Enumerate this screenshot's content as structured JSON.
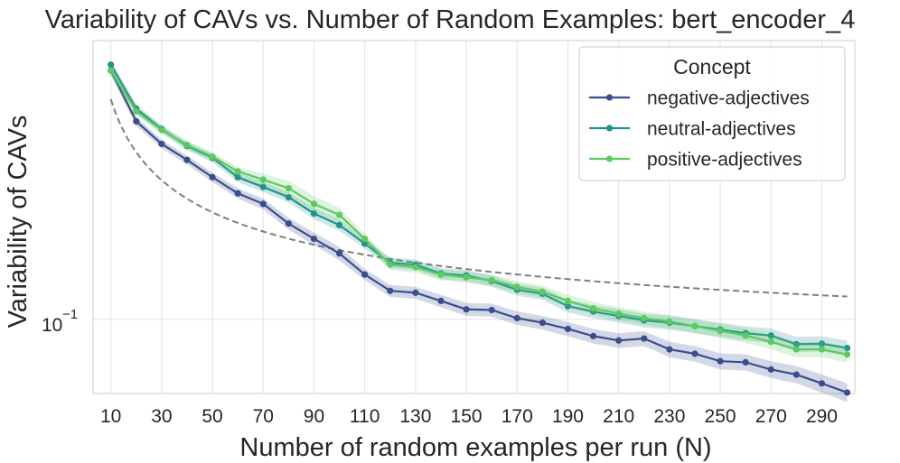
{
  "chart_data": {
    "type": "line",
    "title": "Variability of CAVs vs. Number of Random Examples: bert_encoder_4",
    "xlabel": "Number of random examples per run (N)",
    "ylabel": "Variability of CAVs",
    "yscale": "log",
    "ylim": [
      0.0719,
      0.345
    ],
    "xlim": [
      3,
      303
    ],
    "x": [
      10,
      20,
      30,
      40,
      50,
      60,
      70,
      80,
      90,
      100,
      110,
      120,
      130,
      140,
      150,
      160,
      170,
      180,
      190,
      200,
      210,
      220,
      230,
      240,
      250,
      260,
      270,
      280,
      290,
      300
    ],
    "x_ticks": [
      10,
      30,
      50,
      70,
      90,
      110,
      130,
      150,
      170,
      190,
      210,
      230,
      250,
      270,
      290
    ],
    "x_tick_labels": [
      "10",
      "30",
      "50",
      "70",
      "90",
      "110",
      "130",
      "150",
      "170",
      "190",
      "210",
      "230",
      "250",
      "270",
      "290"
    ],
    "y_ticks": [
      0.1
    ],
    "y_tick_label_base": "10",
    "y_tick_label_exp": "−1",
    "grid": true,
    "legend": {
      "title": "Concept",
      "position": "top-right"
    },
    "series": [
      {
        "name": "negative-adjectives",
        "color": "#3a4e8c",
        "values": [
          0.302,
          0.241,
          0.218,
          0.203,
          0.188,
          0.175,
          0.167,
          0.153,
          0.143,
          0.134,
          0.122,
          0.1135,
          0.1125,
          0.1085,
          0.1045,
          0.1042,
          0.1005,
          0.0985,
          0.0958,
          0.0928,
          0.091,
          0.0918,
          0.0875,
          0.0858,
          0.083,
          0.0826,
          0.08,
          0.0782,
          0.0752,
          0.0722
        ],
        "band": [
          0.006,
          0.005,
          0.004,
          0.004,
          0.004,
          0.004,
          0.004,
          0.004,
          0.004,
          0.004,
          0.003,
          0.003,
          0.003,
          0.003,
          0.003,
          0.003,
          0.003,
          0.003,
          0.003,
          0.003,
          0.003,
          0.003,
          0.003,
          0.003,
          0.003,
          0.003,
          0.003,
          0.003,
          0.003,
          0.003
        ]
      },
      {
        "name": "neutral-adjectives",
        "color": "#21918c",
        "values": [
          0.31,
          0.255,
          0.233,
          0.216,
          0.205,
          0.188,
          0.18,
          0.172,
          0.16,
          0.152,
          0.14,
          0.1285,
          0.1275,
          0.1225,
          0.1215,
          0.1185,
          0.114,
          0.112,
          0.106,
          0.1035,
          0.1015,
          0.0995,
          0.0985,
          0.097,
          0.0955,
          0.094,
          0.093,
          0.0895,
          0.0897,
          0.088
        ],
        "band": [
          0.006,
          0.005,
          0.004,
          0.004,
          0.004,
          0.004,
          0.004,
          0.004,
          0.004,
          0.004,
          0.003,
          0.003,
          0.003,
          0.003,
          0.003,
          0.003,
          0.003,
          0.003,
          0.003,
          0.003,
          0.003,
          0.003,
          0.003,
          0.003,
          0.003,
          0.003,
          0.003,
          0.003,
          0.003,
          0.003
        ]
      },
      {
        "name": "positive-adjectives",
        "color": "#5ec962",
        "values": [
          0.302,
          0.252,
          0.232,
          0.217,
          0.206,
          0.193,
          0.186,
          0.179,
          0.167,
          0.159,
          0.143,
          0.1275,
          0.126,
          0.122,
          0.1205,
          0.119,
          0.1155,
          0.113,
          0.1085,
          0.105,
          0.1025,
          0.1005,
          0.099,
          0.097,
          0.095,
          0.093,
          0.0905,
          0.0875,
          0.0875,
          0.0855
        ],
        "band": [
          0.006,
          0.005,
          0.004,
          0.004,
          0.004,
          0.004,
          0.005,
          0.006,
          0.006,
          0.005,
          0.003,
          0.003,
          0.003,
          0.003,
          0.003,
          0.003,
          0.003,
          0.003,
          0.003,
          0.003,
          0.003,
          0.003,
          0.003,
          0.003,
          0.003,
          0.003,
          0.003,
          0.003,
          0.003,
          0.003
        ]
      }
    ],
    "reference_curve": {
      "type": "dashed",
      "color": "#7f7f7f",
      "formula": "a / sqrt(N) + c",
      "a": 0.6,
      "c": 0.076,
      "x_range": [
        10,
        300
      ]
    }
  }
}
